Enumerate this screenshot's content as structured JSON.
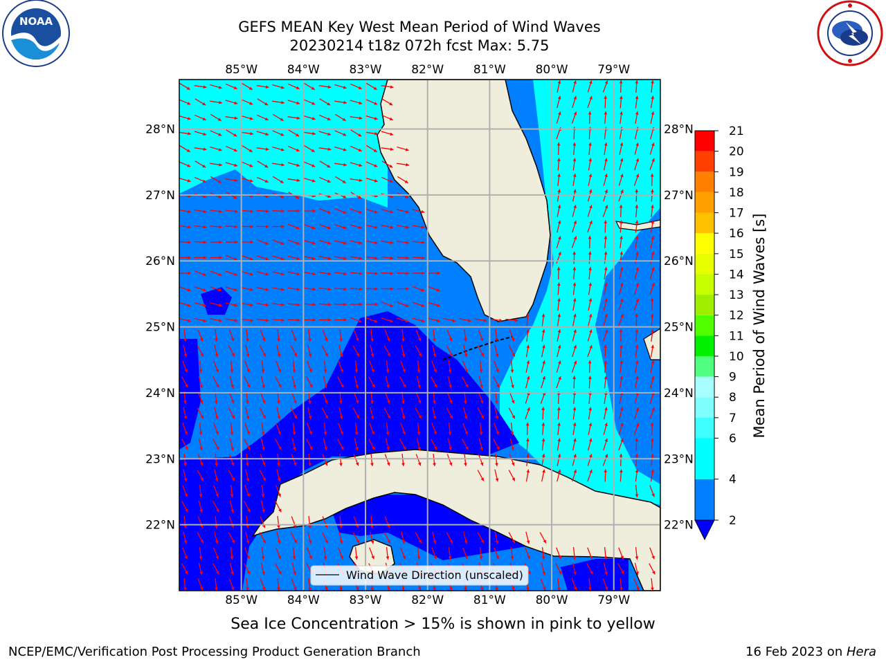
{
  "title_line1": "GEFS MEAN Key West Mean Period of Wind Waves",
  "title_line2": "20230214 t18z 072h fcst   Max: 5.75",
  "subtitle": "Sea Ice Concentration > 15% is shown in pink to yellow",
  "footer_left": "NCEP/EMC/Verification Post Processing Product Generation Branch",
  "footer_date": "16 Feb 2023 on ",
  "footer_host": "Hera",
  "logos": {
    "left_icon": "noaa-logo-icon",
    "left_text": "NOAA",
    "right_icon": "nws-logo-icon"
  },
  "map": {
    "lon_range": [
      -86.0,
      -78.25
    ],
    "lat_range": [
      21.0,
      28.75
    ],
    "lon_ticks": [
      -85,
      -84,
      -83,
      -82,
      -81,
      -80,
      -79
    ],
    "lat_ticks": [
      22,
      23,
      24,
      25,
      26,
      27,
      28
    ],
    "lon_labels": [
      "85°W",
      "84°W",
      "83°W",
      "82°W",
      "81°W",
      "80°W",
      "79°W"
    ],
    "lat_labels": [
      "22°N",
      "23°N",
      "24°N",
      "25°N",
      "26°N",
      "27°N",
      "28°N"
    ],
    "legend_label": "Wind Wave Direction (unscaled)",
    "colors": {
      "land": "#efeedd",
      "deep": "#0000ff",
      "mid": "#0080ff",
      "shallow": "#00ffff",
      "arrow": "#ff0000",
      "grid": "#b0b0b0"
    }
  },
  "colorbar": {
    "label": "Mean Period of Wind Waves [s]",
    "ticks": [
      2,
      4,
      6,
      7,
      8,
      9,
      10,
      11,
      12,
      13,
      14,
      15,
      16,
      17,
      18,
      19,
      20,
      21
    ],
    "tick_labels": [
      "2",
      "4",
      "6",
      "7",
      "8",
      "9",
      "10",
      "11",
      "12",
      "13",
      "14",
      "15",
      "16",
      "17",
      "18",
      "19",
      "20",
      "21"
    ],
    "bands": [
      {
        "from": 2,
        "to": 4,
        "color": "#0080ff"
      },
      {
        "from": 4,
        "to": 6,
        "color": "#00ffff"
      },
      {
        "from": 6,
        "to": 7,
        "color": "#40ffff"
      },
      {
        "from": 7,
        "to": 8,
        "color": "#80ffff"
      },
      {
        "from": 8,
        "to": 9,
        "color": "#a8ffff"
      },
      {
        "from": 9,
        "to": 10,
        "color": "#50ff80"
      },
      {
        "from": 10,
        "to": 11,
        "color": "#00f000"
      },
      {
        "from": 11,
        "to": 12,
        "color": "#50ff00"
      },
      {
        "from": 12,
        "to": 13,
        "color": "#a0ee00"
      },
      {
        "from": 13,
        "to": 14,
        "color": "#c8ff00"
      },
      {
        "from": 14,
        "to": 15,
        "color": "#e8ff00"
      },
      {
        "from": 15,
        "to": 16,
        "color": "#ffff00"
      },
      {
        "from": 16,
        "to": 17,
        "color": "#ffc000"
      },
      {
        "from": 17,
        "to": 18,
        "color": "#ffa000"
      },
      {
        "from": 18,
        "to": 19,
        "color": "#ff8000"
      },
      {
        "from": 19,
        "to": 20,
        "color": "#ff4000"
      },
      {
        "from": 20,
        "to": 21,
        "color": "#ff0000"
      }
    ],
    "under_color": "#0000ff"
  }
}
